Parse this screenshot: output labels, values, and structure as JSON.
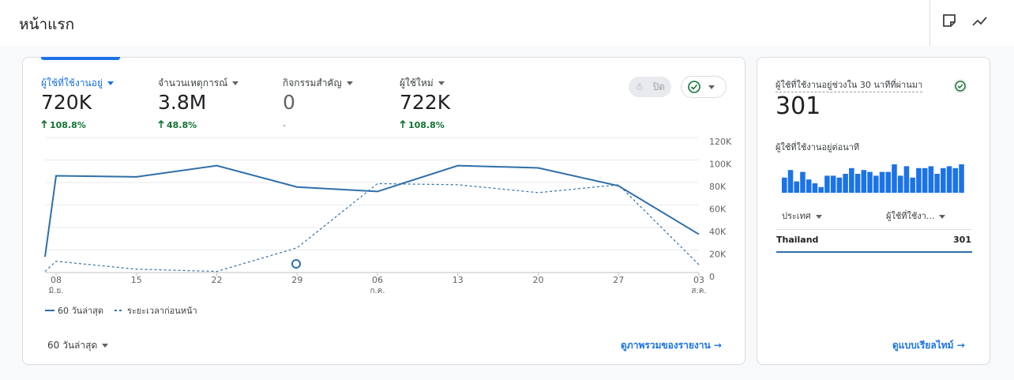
{
  "header": {
    "title": "หน้าแรก"
  },
  "overview": {
    "metrics": [
      {
        "label": "ผู้ใช้ที่ใช้งานอยู่",
        "value": "720K",
        "change": "108.8%"
      },
      {
        "label": "จำนวนเหตุการณ์",
        "value": "3.8M",
        "change": "48.8%"
      },
      {
        "label": "กิจกรรมสำคัญ",
        "value": 0,
        "change": "-"
      },
      {
        "label": "ผู้ใช้ใหม่",
        "value": "722K",
        "change": "108.8%"
      }
    ],
    "toggle": "ปิด",
    "period": "60 วันล่าสุด",
    "link": "ดูภาพรวมของรายงาน"
  },
  "chart_data": [
    {
      "type": "line",
      "categories": [
        null,
        "08",
        "15",
        "22",
        "29",
        "06",
        "13",
        "20",
        "27",
        "03"
      ],
      "category_months": [
        null,
        "มิ.ย.",
        null,
        null,
        null,
        "ก.ค.",
        null,
        null,
        null,
        "ส.ค."
      ],
      "series": [
        {
          "name": "60 วันล่าสุด",
          "color": "#2f6fa8",
          "style": "solid",
          "values": [
            14000,
            86000,
            85000,
            95000,
            76000,
            72000,
            95000,
            93000,
            77000,
            34000
          ]
        },
        {
          "name": "ระยะเวลาก่อนหน้า",
          "color": "#2f6fa8",
          "style": "dashed",
          "values": [
            1000,
            10000,
            3000,
            1000,
            22000,
            79000,
            78000,
            71000,
            78000,
            7000
          ]
        }
      ],
      "ylim": [
        0,
        120000
      ],
      "yticks": [
        0,
        {
          "value": 20000,
          "label": "20K"
        },
        {
          "value": 40000,
          "label": "40K"
        },
        {
          "value": 60000,
          "label": "60K"
        },
        {
          "value": 80000,
          "label": "80K"
        },
        {
          "value": 100000,
          "label": "100K"
        },
        {
          "value": 120000,
          "label": "120K"
        }
      ],
      "grid": true
    },
    {
      "type": "bar",
      "title": "ผู้ใช้ที่ใช้งานอยู่ต่อนาที",
      "color": "#1a73e8",
      "values": [
        8,
        12,
        6,
        11,
        7,
        5,
        3,
        9,
        9,
        8,
        10,
        13,
        10,
        12,
        11,
        9,
        11,
        11,
        15,
        9,
        14,
        8,
        13,
        13,
        14,
        10,
        13,
        14,
        13,
        15
      ]
    }
  ],
  "realtime": {
    "title": "ผู้ใช้ที่ใช้งานอยู่ช่วงใน 30 นาทีที่ผ่านมา",
    "value": 301,
    "table": {
      "headers": [
        "ประเทศ",
        "ผู้ใช้ที่ใช้งา..."
      ],
      "rows": [
        [
          "Thailand",
          301
        ]
      ]
    },
    "link": "ดูแบบเรียลไทม์"
  }
}
